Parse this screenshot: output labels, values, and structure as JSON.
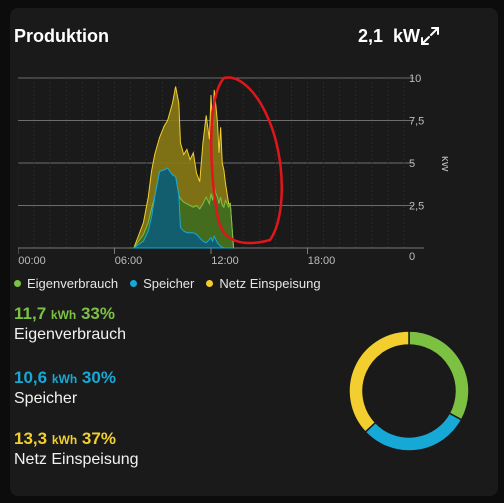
{
  "header": {
    "title": "Produktion",
    "power_value": "2,1",
    "power_unit": "kW"
  },
  "chart_data": {
    "type": "area",
    "x_ticks": [
      "00:00",
      "06:00",
      "12:00",
      "18:00"
    ],
    "y_ticks": [
      "10",
      "7,5",
      "5",
      "2,5",
      "0"
    ],
    "ylabel": "kW",
    "ylim": [
      0,
      10
    ],
    "series": [
      {
        "name": "Eigenverbrauch",
        "color": "#7dc142"
      },
      {
        "name": "Speicher",
        "color": "#17a9d6"
      },
      {
        "name": "Netz Einspeisung",
        "color": "#f2cf2e"
      }
    ],
    "x_hours": [
      7.2,
      7.8,
      8.1,
      8.3,
      8.5,
      8.8,
      9.1,
      9.3,
      9.6,
      9.8,
      10.0,
      10.1,
      10.3,
      10.5,
      10.7,
      10.9,
      11.1,
      11.3,
      11.5,
      11.7,
      11.9,
      12.0,
      12.1,
      12.2,
      12.3,
      12.4,
      12.5,
      12.6,
      12.7,
      12.8,
      12.9,
      13.0,
      13.1,
      13.2,
      13.4
    ],
    "total": [
      0,
      1.5,
      3,
      4.5,
      5.5,
      6.5,
      7.2,
      7.5,
      8.5,
      9.5,
      8.5,
      6.2,
      5.5,
      5.8,
      5.2,
      5.6,
      4.4,
      3.9,
      6.2,
      7.8,
      6.4,
      9.0,
      7.2,
      9.3,
      8.4,
      7.4,
      5.6,
      7.1,
      5.0,
      4.6,
      3.8,
      3.2,
      2.6,
      2.6,
      0
    ],
    "eigenverbrauch": [
      0,
      0.8,
      1.5,
      2.3,
      2.8,
      3.0,
      3.3,
      3.5,
      3.2,
      3.4,
      3.0,
      2.9,
      2.7,
      2.6,
      2.5,
      2.4,
      2.5,
      2.3,
      2.6,
      3.0,
      2.6,
      3.2,
      2.8,
      3.6,
      3.2,
      3.0,
      2.6,
      3.0,
      2.5,
      2.4,
      2.8,
      2.6,
      2.4,
      2.6,
      0
    ],
    "speicher": [
      0,
      0.4,
      1.0,
      1.8,
      3.0,
      4.5,
      4.6,
      4.7,
      4.3,
      4.2,
      3.1,
      1.2,
      1.0,
      0.9,
      0.9,
      0.9,
      0.8,
      0.6,
      0.4,
      0.3,
      0.5,
      0.6,
      0.4,
      0.7,
      0.5,
      0.3,
      0.2,
      0.1,
      0.05,
      0,
      0,
      0,
      0,
      0,
      0
    ]
  },
  "legend": [
    {
      "label": "Eigenverbrauch",
      "color": "#7dc142"
    },
    {
      "label": "Speicher",
      "color": "#17a9d6"
    },
    {
      "label": "Netz Einspeisung",
      "color": "#f2cf2e"
    }
  ],
  "stats": [
    {
      "value": "11,7",
      "unit": "kWh",
      "percent": "33%",
      "label": "Eigenverbrauch",
      "color": "#7dc142"
    },
    {
      "value": "10,6",
      "unit": "kWh",
      "percent": "30%",
      "label": "Speicher",
      "color": "#17a9d6"
    },
    {
      "value": "13,3",
      "unit": "kWh",
      "percent": "37%",
      "label": "Netz Einspeisung",
      "color": "#f2cf2e"
    }
  ],
  "donut": [
    {
      "name": "Eigenverbrauch",
      "fraction": 0.33,
      "color": "#7dc142"
    },
    {
      "name": "Speicher",
      "fraction": 0.3,
      "color": "#17a9d6"
    },
    {
      "name": "Netz Einspeisung",
      "fraction": 0.37,
      "color": "#f2cf2e"
    }
  ]
}
